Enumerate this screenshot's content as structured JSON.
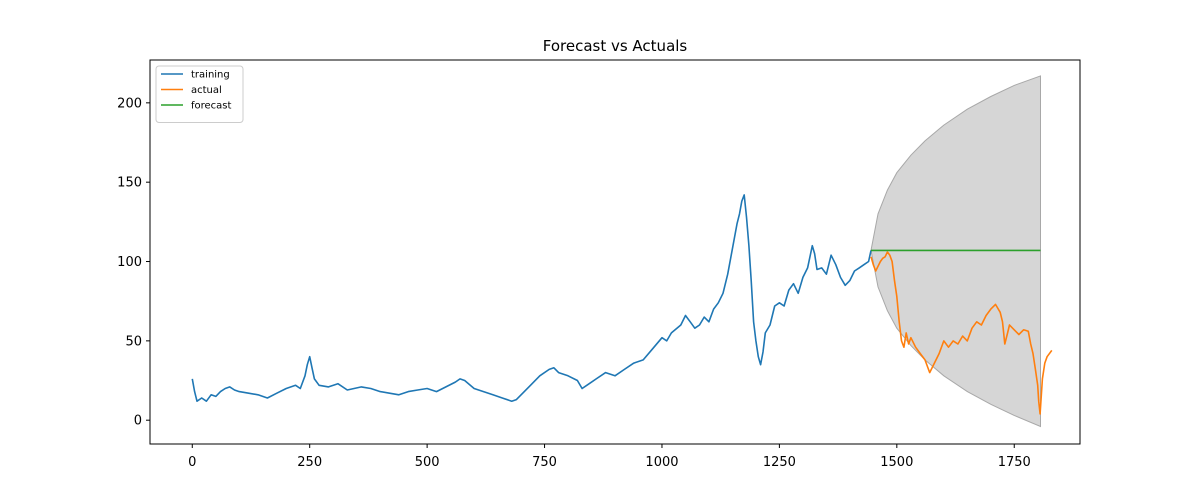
{
  "chart_data": {
    "type": "line",
    "title": "Forecast vs Actuals",
    "xlabel": "",
    "ylabel": "",
    "xlim": [
      -90,
      1890
    ],
    "ylim": [
      -15,
      227
    ],
    "xticks": [
      0,
      250,
      500,
      750,
      1000,
      1250,
      1500,
      1750
    ],
    "yticks": [
      0,
      50,
      100,
      150,
      200
    ],
    "grid": false,
    "legend_position": "top-left",
    "series": [
      {
        "name": "training",
        "color": "#1f77b4",
        "points": [
          [
            0,
            26
          ],
          [
            5,
            18
          ],
          [
            10,
            12
          ],
          [
            20,
            14
          ],
          [
            30,
            12
          ],
          [
            40,
            16
          ],
          [
            50,
            15
          ],
          [
            60,
            18
          ],
          [
            70,
            20
          ],
          [
            80,
            21
          ],
          [
            90,
            19
          ],
          [
            100,
            18
          ],
          [
            120,
            17
          ],
          [
            140,
            16
          ],
          [
            160,
            14
          ],
          [
            180,
            17
          ],
          [
            200,
            20
          ],
          [
            220,
            22
          ],
          [
            230,
            20
          ],
          [
            240,
            28
          ],
          [
            245,
            35
          ],
          [
            250,
            40
          ],
          [
            255,
            33
          ],
          [
            260,
            26
          ],
          [
            270,
            22
          ],
          [
            290,
            21
          ],
          [
            310,
            23
          ],
          [
            330,
            19
          ],
          [
            360,
            21
          ],
          [
            380,
            20
          ],
          [
            400,
            18
          ],
          [
            420,
            17
          ],
          [
            440,
            16
          ],
          [
            460,
            18
          ],
          [
            480,
            19
          ],
          [
            500,
            20
          ],
          [
            520,
            18
          ],
          [
            540,
            21
          ],
          [
            560,
            24
          ],
          [
            570,
            26
          ],
          [
            580,
            25
          ],
          [
            600,
            20
          ],
          [
            620,
            18
          ],
          [
            640,
            16
          ],
          [
            660,
            14
          ],
          [
            680,
            12
          ],
          [
            690,
            13
          ],
          [
            700,
            16
          ],
          [
            720,
            22
          ],
          [
            740,
            28
          ],
          [
            760,
            32
          ],
          [
            770,
            33
          ],
          [
            780,
            30
          ],
          [
            800,
            28
          ],
          [
            820,
            25
          ],
          [
            830,
            20
          ],
          [
            840,
            22
          ],
          [
            860,
            26
          ],
          [
            880,
            30
          ],
          [
            900,
            28
          ],
          [
            920,
            32
          ],
          [
            940,
            36
          ],
          [
            960,
            38
          ],
          [
            980,
            45
          ],
          [
            1000,
            52
          ],
          [
            1010,
            50
          ],
          [
            1020,
            55
          ],
          [
            1040,
            60
          ],
          [
            1050,
            66
          ],
          [
            1060,
            62
          ],
          [
            1070,
            58
          ],
          [
            1080,
            60
          ],
          [
            1090,
            65
          ],
          [
            1100,
            62
          ],
          [
            1110,
            70
          ],
          [
            1120,
            74
          ],
          [
            1130,
            80
          ],
          [
            1140,
            92
          ],
          [
            1150,
            108
          ],
          [
            1160,
            124
          ],
          [
            1165,
            130
          ],
          [
            1170,
            138
          ],
          [
            1175,
            142
          ],
          [
            1180,
            128
          ],
          [
            1185,
            110
          ],
          [
            1190,
            88
          ],
          [
            1195,
            62
          ],
          [
            1200,
            50
          ],
          [
            1205,
            40
          ],
          [
            1210,
            35
          ],
          [
            1215,
            43
          ],
          [
            1220,
            55
          ],
          [
            1230,
            60
          ],
          [
            1240,
            72
          ],
          [
            1250,
            74
          ],
          [
            1260,
            72
          ],
          [
            1270,
            82
          ],
          [
            1280,
            86
          ],
          [
            1290,
            80
          ],
          [
            1300,
            90
          ],
          [
            1310,
            96
          ],
          [
            1320,
            110
          ],
          [
            1325,
            105
          ],
          [
            1330,
            95
          ],
          [
            1340,
            96
          ],
          [
            1350,
            92
          ],
          [
            1360,
            104
          ],
          [
            1370,
            98
          ],
          [
            1380,
            90
          ],
          [
            1390,
            85
          ],
          [
            1400,
            88
          ],
          [
            1410,
            94
          ],
          [
            1420,
            96
          ],
          [
            1430,
            98
          ],
          [
            1440,
            100
          ],
          [
            1445,
            107
          ]
        ]
      },
      {
        "name": "actual",
        "color": "#ff7f0e",
        "points": [
          [
            1445,
            103
          ],
          [
            1450,
            98
          ],
          [
            1455,
            94
          ],
          [
            1460,
            97
          ],
          [
            1465,
            100
          ],
          [
            1470,
            102
          ],
          [
            1475,
            103
          ],
          [
            1480,
            106
          ],
          [
            1485,
            104
          ],
          [
            1490,
            100
          ],
          [
            1495,
            88
          ],
          [
            1500,
            78
          ],
          [
            1505,
            62
          ],
          [
            1510,
            50
          ],
          [
            1515,
            46
          ],
          [
            1520,
            55
          ],
          [
            1525,
            48
          ],
          [
            1530,
            52
          ],
          [
            1540,
            46
          ],
          [
            1550,
            42
          ],
          [
            1560,
            38
          ],
          [
            1570,
            30
          ],
          [
            1580,
            36
          ],
          [
            1590,
            42
          ],
          [
            1600,
            50
          ],
          [
            1610,
            46
          ],
          [
            1620,
            50
          ],
          [
            1630,
            48
          ],
          [
            1640,
            53
          ],
          [
            1650,
            50
          ],
          [
            1660,
            58
          ],
          [
            1670,
            62
          ],
          [
            1680,
            60
          ],
          [
            1690,
            66
          ],
          [
            1700,
            70
          ],
          [
            1710,
            73
          ],
          [
            1720,
            68
          ],
          [
            1725,
            62
          ],
          [
            1730,
            48
          ],
          [
            1735,
            54
          ],
          [
            1740,
            60
          ],
          [
            1750,
            57
          ],
          [
            1760,
            54
          ],
          [
            1770,
            57
          ],
          [
            1780,
            56
          ],
          [
            1785,
            48
          ],
          [
            1790,
            42
          ],
          [
            1795,
            32
          ],
          [
            1800,
            22
          ],
          [
            1802,
            12
          ],
          [
            1805,
            4
          ],
          [
            1810,
            26
          ],
          [
            1815,
            36
          ],
          [
            1820,
            40
          ],
          [
            1830,
            44
          ]
        ]
      },
      {
        "name": "forecast",
        "color": "#2ca02c",
        "points": [
          [
            1445,
            107
          ],
          [
            1806,
            107
          ]
        ]
      }
    ],
    "confidence_band": {
      "color": "#d6d6d6",
      "edge_color": "#a8a8a8",
      "x_start": 1445,
      "x_end": 1806,
      "upper": [
        [
          1445,
          107
        ],
        [
          1460,
          130
        ],
        [
          1480,
          145
        ],
        [
          1500,
          156
        ],
        [
          1530,
          167
        ],
        [
          1560,
          176
        ],
        [
          1600,
          186
        ],
        [
          1650,
          196
        ],
        [
          1700,
          204
        ],
        [
          1750,
          211
        ],
        [
          1806,
          217
        ]
      ],
      "lower": [
        [
          1445,
          107
        ],
        [
          1460,
          84
        ],
        [
          1480,
          69
        ],
        [
          1500,
          58
        ],
        [
          1530,
          47
        ],
        [
          1560,
          38
        ],
        [
          1600,
          28
        ],
        [
          1650,
          18
        ],
        [
          1700,
          10
        ],
        [
          1750,
          3
        ],
        [
          1806,
          -4
        ]
      ]
    }
  }
}
